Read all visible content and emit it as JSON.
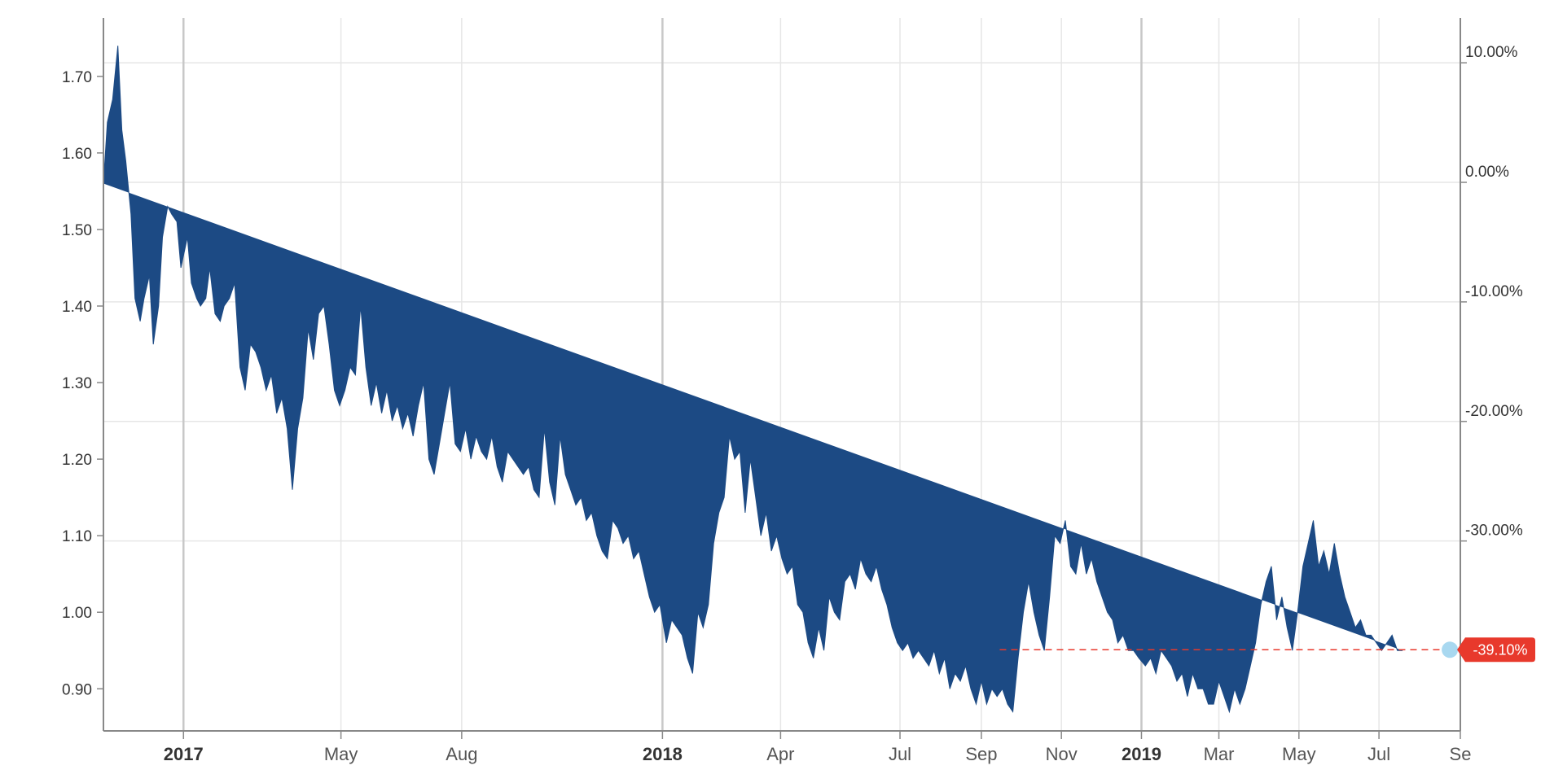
{
  "chart_data": {
    "type": "area",
    "title": "",
    "xlabel": "",
    "ylabel": "",
    "y_left_ticks": [
      "0.90",
      "1.00",
      "1.10",
      "1.20",
      "1.30",
      "1.40",
      "1.50",
      "1.60",
      "1.70"
    ],
    "y_right_ticks": [
      "-30.00%",
      "-20.00%",
      "-10.00%",
      "0.00%",
      "10.00%"
    ],
    "ylim": [
      0.845,
      1.77
    ],
    "x_ticks": [
      {
        "label": "2017",
        "date": "2017-01-01",
        "major": true
      },
      {
        "label": "May",
        "date": "2017-05-01",
        "major": false
      },
      {
        "label": "Aug",
        "date": "2017-08-01",
        "major": false
      },
      {
        "label": "2018",
        "date": "2018-01-01",
        "major": true
      },
      {
        "label": "Apr",
        "date": "2018-04-01",
        "major": false
      },
      {
        "label": "Jul",
        "date": "2018-07-01",
        "major": false
      },
      {
        "label": "Sep",
        "date": "2018-09-01",
        "major": false
      },
      {
        "label": "Nov",
        "date": "2018-11-01",
        "major": false
      },
      {
        "label": "2019",
        "date": "2019-01-01",
        "major": true
      },
      {
        "label": "Mar",
        "date": "2019-03-01",
        "major": false
      },
      {
        "label": "May",
        "date": "2019-05-01",
        "major": false
      },
      {
        "label": "Jul",
        "date": "2019-07-01",
        "major": false
      },
      {
        "label": "Se",
        "date": "2019-09-01",
        "major": false
      }
    ],
    "xlim": [
      "2016-11-01",
      "2019-09-01"
    ],
    "grid": true,
    "series": [
      {
        "values_x": [
          "2016-11-01",
          "2016-11-04",
          "2016-11-08",
          "2016-11-12",
          "2016-11-15",
          "2016-11-18",
          "2016-11-22",
          "2016-11-25",
          "2016-11-29",
          "2016-12-02",
          "2016-12-06",
          "2016-12-09",
          "2016-12-13",
          "2016-12-16",
          "2016-12-20",
          "2016-12-23",
          "2016-12-27",
          "2016-12-30",
          "2017-01-04",
          "2017-01-07",
          "2017-01-11",
          "2017-01-14",
          "2017-01-18",
          "2017-01-21",
          "2017-01-25",
          "2017-01-29",
          "2017-02-01",
          "2017-02-05",
          "2017-02-09",
          "2017-02-13",
          "2017-02-17",
          "2017-02-21",
          "2017-02-25",
          "2017-03-01",
          "2017-03-05",
          "2017-03-09",
          "2017-03-13",
          "2017-03-17",
          "2017-03-21",
          "2017-03-25",
          "2017-03-29",
          "2017-04-02",
          "2017-04-06",
          "2017-04-10",
          "2017-04-14",
          "2017-04-18",
          "2017-04-22",
          "2017-04-26",
          "2017-04-30",
          "2017-05-04",
          "2017-05-08",
          "2017-05-12",
          "2017-05-16",
          "2017-05-20",
          "2017-05-24",
          "2017-05-28",
          "2017-06-01",
          "2017-06-05",
          "2017-06-09",
          "2017-06-13",
          "2017-06-17",
          "2017-06-21",
          "2017-06-25",
          "2017-06-29",
          "2017-07-03",
          "2017-07-07",
          "2017-07-11",
          "2017-07-15",
          "2017-07-19",
          "2017-07-23",
          "2017-07-27",
          "2017-07-31",
          "2017-08-04",
          "2017-08-08",
          "2017-08-12",
          "2017-08-16",
          "2017-08-20",
          "2017-08-24",
          "2017-08-28",
          "2017-09-01",
          "2017-09-05",
          "2017-09-09",
          "2017-09-13",
          "2017-09-17",
          "2017-09-21",
          "2017-09-25",
          "2017-09-29",
          "2017-10-03",
          "2017-10-07",
          "2017-10-11",
          "2017-10-15",
          "2017-10-19",
          "2017-10-23",
          "2017-10-27",
          "2017-10-31",
          "2017-11-04",
          "2017-11-08",
          "2017-11-12",
          "2017-11-16",
          "2017-11-20",
          "2017-11-24",
          "2017-11-28",
          "2017-12-02",
          "2017-12-06",
          "2017-12-10",
          "2017-12-14",
          "2017-12-18",
          "2017-12-22",
          "2017-12-26",
          "2017-12-30",
          "2018-01-04",
          "2018-01-08",
          "2018-01-12",
          "2018-01-16",
          "2018-01-20",
          "2018-01-24",
          "2018-01-28",
          "2018-02-01",
          "2018-02-05",
          "2018-02-09",
          "2018-02-13",
          "2018-02-17",
          "2018-02-21",
          "2018-02-25",
          "2018-03-01",
          "2018-03-05",
          "2018-03-09",
          "2018-03-13",
          "2018-03-17",
          "2018-03-21",
          "2018-03-25",
          "2018-03-29",
          "2018-04-02",
          "2018-04-06",
          "2018-04-10",
          "2018-04-14",
          "2018-04-18",
          "2018-04-22",
          "2018-04-26",
          "2018-04-30",
          "2018-05-04",
          "2018-05-08",
          "2018-05-12",
          "2018-05-16",
          "2018-05-20",
          "2018-05-24",
          "2018-05-28",
          "2018-06-01",
          "2018-06-05",
          "2018-06-09",
          "2018-06-13",
          "2018-06-17",
          "2018-06-21",
          "2018-06-25",
          "2018-06-29",
          "2018-07-03",
          "2018-07-07",
          "2018-07-11",
          "2018-07-15",
          "2018-07-19",
          "2018-07-23",
          "2018-07-27",
          "2018-07-31",
          "2018-08-04",
          "2018-08-08",
          "2018-08-12",
          "2018-08-16",
          "2018-08-20",
          "2018-08-24",
          "2018-08-28",
          "2018-09-01",
          "2018-09-05",
          "2018-09-09",
          "2018-09-13",
          "2018-09-17",
          "2018-09-21",
          "2018-09-25",
          "2018-09-29",
          "2018-10-03",
          "2018-10-07",
          "2018-10-11",
          "2018-10-15",
          "2018-10-19",
          "2018-10-23",
          "2018-10-27",
          "2018-10-31",
          "2018-11-04",
          "2018-11-08",
          "2018-11-12",
          "2018-11-16",
          "2018-11-20",
          "2018-11-24",
          "2018-11-28",
          "2018-12-02",
          "2018-12-06",
          "2018-12-10",
          "2018-12-14",
          "2018-12-18",
          "2018-12-22",
          "2018-12-26",
          "2018-12-30",
          "2019-01-04",
          "2019-01-08",
          "2019-01-12",
          "2019-01-16",
          "2019-01-20",
          "2019-01-24",
          "2019-01-28",
          "2019-02-01",
          "2019-02-05",
          "2019-02-09",
          "2019-02-13",
          "2019-02-17",
          "2019-02-21",
          "2019-02-25",
          "2019-03-01",
          "2019-03-05",
          "2019-03-09",
          "2019-03-13",
          "2019-03-17",
          "2019-03-21",
          "2019-03-25",
          "2019-03-29",
          "2019-04-02",
          "2019-04-06",
          "2019-04-10",
          "2019-04-14",
          "2019-04-18",
          "2019-04-22",
          "2019-04-26",
          "2019-04-30",
          "2019-05-04",
          "2019-05-08",
          "2019-05-12",
          "2019-05-16",
          "2019-05-20",
          "2019-05-24",
          "2019-05-28",
          "2019-06-01",
          "2019-06-05",
          "2019-06-09",
          "2019-06-13",
          "2019-06-17",
          "2019-06-21",
          "2019-06-25",
          "2019-06-29",
          "2019-07-03",
          "2019-07-07",
          "2019-07-11",
          "2019-07-15",
          "2019-07-19",
          "2019-07-23",
          "2019-07-27",
          "2019-07-31",
          "2019-08-04",
          "2019-08-08",
          "2019-08-12",
          "2019-08-16",
          "2019-08-20",
          "2019-08-24"
        ],
        "values": [
          1.56,
          1.64,
          1.67,
          1.74,
          1.63,
          1.59,
          1.52,
          1.41,
          1.38,
          1.41,
          1.44,
          1.35,
          1.4,
          1.49,
          1.53,
          1.52,
          1.51,
          1.45,
          1.49,
          1.43,
          1.41,
          1.4,
          1.41,
          1.45,
          1.39,
          1.38,
          1.4,
          1.41,
          1.43,
          1.32,
          1.29,
          1.35,
          1.34,
          1.32,
          1.29,
          1.31,
          1.26,
          1.28,
          1.24,
          1.16,
          1.24,
          1.28,
          1.37,
          1.33,
          1.39,
          1.4,
          1.35,
          1.29,
          1.27,
          1.29,
          1.32,
          1.31,
          1.4,
          1.32,
          1.27,
          1.3,
          1.26,
          1.29,
          1.25,
          1.27,
          1.24,
          1.26,
          1.23,
          1.27,
          1.3,
          1.2,
          1.18,
          1.22,
          1.26,
          1.3,
          1.22,
          1.21,
          1.24,
          1.2,
          1.23,
          1.21,
          1.2,
          1.23,
          1.19,
          1.17,
          1.21,
          1.2,
          1.19,
          1.18,
          1.19,
          1.16,
          1.15,
          1.24,
          1.17,
          1.14,
          1.23,
          1.18,
          1.16,
          1.14,
          1.15,
          1.12,
          1.13,
          1.1,
          1.08,
          1.07,
          1.12,
          1.11,
          1.09,
          1.1,
          1.07,
          1.08,
          1.05,
          1.02,
          1.0,
          1.01,
          0.96,
          0.99,
          0.98,
          0.97,
          0.94,
          0.92,
          1.0,
          0.98,
          1.01,
          1.09,
          1.13,
          1.15,
          1.23,
          1.2,
          1.21,
          1.13,
          1.2,
          1.15,
          1.1,
          1.13,
          1.08,
          1.1,
          1.07,
          1.05,
          1.06,
          1.01,
          1.0,
          0.96,
          0.94,
          0.98,
          0.95,
          1.02,
          1.0,
          0.99,
          1.04,
          1.05,
          1.03,
          1.07,
          1.05,
          1.04,
          1.06,
          1.03,
          1.01,
          0.98,
          0.96,
          0.95,
          0.96,
          0.94,
          0.95,
          0.94,
          0.93,
          0.95,
          0.92,
          0.94,
          0.9,
          0.92,
          0.91,
          0.93,
          0.9,
          0.88,
          0.91,
          0.88,
          0.9,
          0.89,
          0.9,
          0.88,
          0.87,
          0.94,
          1.0,
          1.04,
          1.0,
          0.97,
          0.95,
          1.02,
          1.1,
          1.09,
          1.12,
          1.06,
          1.05,
          1.09,
          1.05,
          1.07,
          1.04,
          1.02,
          1.0,
          0.99,
          0.96,
          0.97,
          0.95,
          0.95,
          0.94,
          0.93,
          0.94,
          0.92,
          0.95,
          0.94,
          0.93,
          0.91,
          0.92,
          0.89,
          0.92,
          0.9,
          0.9,
          0.88,
          0.88,
          0.91,
          0.89,
          0.87,
          0.9,
          0.88,
          0.9,
          0.93,
          0.96,
          1.01,
          1.04,
          1.06,
          0.99,
          1.02,
          0.98,
          0.95,
          1.0,
          1.06,
          1.09,
          1.12,
          1.06,
          1.08,
          1.05,
          1.09,
          1.05,
          1.02,
          1.0,
          0.98,
          0.99,
          0.97,
          0.97,
          0.96,
          0.95,
          0.96,
          0.97,
          0.95,
          0.95
        ],
        "color": "#1c4a84"
      }
    ],
    "last_value": 0.951,
    "last_change_label": "-39.10%",
    "colors": {
      "area": "#1c4a84",
      "marker": "#a8d8f0",
      "badge": "#e8392c",
      "grid": "#e6e6e6",
      "axis": "#888888"
    }
  }
}
